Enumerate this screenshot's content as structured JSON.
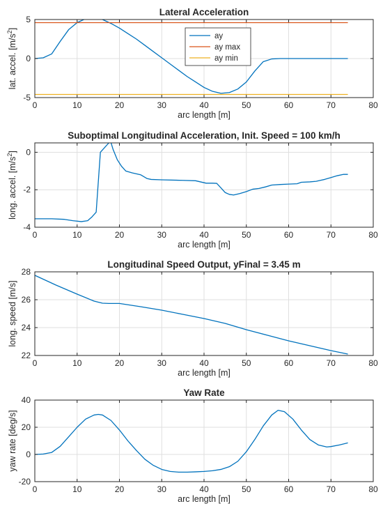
{
  "chart_data": [
    {
      "type": "line",
      "title": "Lateral Acceleration",
      "xlabel": "arc length [m]",
      "ylabel": "lat. accel. [m/s",
      "ylabel_sup": "2",
      "ylabel_end": "]",
      "xlim": [
        0,
        80
      ],
      "ylim": [
        -5,
        5
      ],
      "xticks": [
        "0",
        "10",
        "20",
        "30",
        "40",
        "50",
        "60",
        "70",
        "80"
      ],
      "yticks": [
        "-5",
        "0",
        "5"
      ],
      "grid": true,
      "legend": "top-center",
      "series": [
        {
          "name": "ay",
          "color": "#0072BD",
          "x": [
            0,
            2,
            4,
            6,
            8,
            10,
            12,
            14,
            16,
            18,
            20,
            22,
            24,
            26,
            28,
            30,
            32,
            34,
            36,
            38,
            40,
            42,
            44,
            46,
            48,
            50,
            52,
            54,
            56,
            58,
            60,
            62,
            64,
            66,
            68,
            70,
            72,
            74
          ],
          "y": [
            0,
            0.1,
            0.6,
            2.2,
            3.7,
            4.6,
            5.1,
            5.25,
            5.0,
            4.5,
            3.9,
            3.2,
            2.5,
            1.7,
            0.9,
            0.1,
            -0.7,
            -1.5,
            -2.3,
            -3.0,
            -3.7,
            -4.2,
            -4.45,
            -4.35,
            -3.9,
            -3.0,
            -1.6,
            -0.4,
            -0.05,
            0,
            0,
            0,
            0,
            0,
            0,
            0,
            0,
            0
          ]
        },
        {
          "name": "ay max",
          "color": "#D95319",
          "x": [
            0,
            74
          ],
          "y": [
            4.6,
            4.6
          ]
        },
        {
          "name": "ay min",
          "color": "#EDB120",
          "x": [
            0,
            74
          ],
          "y": [
            -4.6,
            -4.6
          ]
        }
      ]
    },
    {
      "type": "line",
      "title": "Suboptimal Longitudinal Acceleration, Init. Speed = 100 km/h",
      "xlabel": "arc length [m]",
      "ylabel": "long. accel. [m/s",
      "ylabel_sup": "2",
      "ylabel_end": "]",
      "xlim": [
        0,
        80
      ],
      "ylim": [
        -4,
        0.5
      ],
      "xticks": [
        "0",
        "10",
        "20",
        "30",
        "40",
        "50",
        "60",
        "70",
        "80"
      ],
      "yticks": [
        "-4",
        "-2",
        "0"
      ],
      "ytick_values": [
        -4,
        -2,
        0
      ],
      "grid": true,
      "series": [
        {
          "name": "",
          "color": "#0072BD",
          "x": [
            0,
            4,
            7,
            9,
            11,
            12.5,
            13.5,
            14.5,
            15.5,
            16.5,
            17.5,
            18,
            18.5,
            19.5,
            20.5,
            21.5,
            23,
            25,
            26.5,
            27.5,
            30,
            35,
            38,
            40.5,
            42,
            43,
            44,
            45,
            46,
            47,
            48.5,
            50,
            51.5,
            53,
            54.5,
            56,
            58,
            60,
            62,
            63,
            65,
            66.5,
            67.5,
            68.5,
            70,
            71.5,
            73,
            74
          ],
          "y": [
            -3.55,
            -3.55,
            -3.58,
            -3.65,
            -3.7,
            -3.65,
            -3.45,
            -3.2,
            0.0,
            0.25,
            0.5,
            0.52,
            0.15,
            -0.4,
            -0.75,
            -1.0,
            -1.1,
            -1.2,
            -1.4,
            -1.45,
            -1.47,
            -1.5,
            -1.52,
            -1.65,
            -1.65,
            -1.66,
            -1.9,
            -2.15,
            -2.25,
            -2.28,
            -2.2,
            -2.1,
            -1.97,
            -1.93,
            -1.85,
            -1.75,
            -1.72,
            -1.7,
            -1.68,
            -1.6,
            -1.58,
            -1.55,
            -1.5,
            -1.45,
            -1.35,
            -1.25,
            -1.18,
            -1.18
          ]
        }
      ]
    },
    {
      "type": "line",
      "title": "Longitudinal Speed Output, yFinal = 3.45 m",
      "xlabel": "arc length [m]",
      "ylabel": "long. speed [m/s]",
      "xlim": [
        0,
        80
      ],
      "ylim": [
        22,
        28
      ],
      "xticks": [
        "0",
        "10",
        "20",
        "30",
        "40",
        "50",
        "60",
        "70",
        "80"
      ],
      "yticks": [
        "22",
        "24",
        "26",
        "28"
      ],
      "ytick_values": [
        22,
        24,
        26,
        28
      ],
      "grid": true,
      "series": [
        {
          "name": "",
          "color": "#0072BD",
          "x": [
            0,
            5,
            10,
            14,
            16,
            17.5,
            20,
            25,
            30,
            35,
            40,
            45,
            50,
            55,
            60,
            65,
            70,
            74
          ],
          "y": [
            27.75,
            27.05,
            26.4,
            25.9,
            25.75,
            25.73,
            25.73,
            25.5,
            25.25,
            24.95,
            24.65,
            24.3,
            23.85,
            23.45,
            23.05,
            22.7,
            22.35,
            22.1
          ]
        }
      ]
    },
    {
      "type": "line",
      "title": "Yaw Rate",
      "xlabel": "arc length [m]",
      "ylabel": "yaw rate [deg/s]",
      "xlim": [
        0,
        80
      ],
      "ylim": [
        -20,
        40
      ],
      "xticks": [
        "0",
        "10",
        "20",
        "30",
        "40",
        "50",
        "60",
        "70",
        "80"
      ],
      "yticks": [
        "-20",
        "0",
        "20",
        "40"
      ],
      "ytick_values": [
        -20,
        0,
        20,
        40
      ],
      "grid": true,
      "series": [
        {
          "name": "",
          "color": "#0072BD",
          "x": [
            0,
            2,
            4,
            6,
            8,
            10,
            12,
            14,
            15,
            16,
            18,
            20,
            22,
            24,
            26,
            28,
            30,
            32,
            34,
            36,
            38,
            40,
            42,
            44,
            46,
            48,
            50,
            52,
            54,
            56,
            57.5,
            59,
            61,
            63,
            65,
            67,
            69,
            70,
            72,
            74
          ],
          "y": [
            0,
            0.3,
            1.5,
            6,
            13,
            20,
            26,
            29,
            29.5,
            29,
            25,
            18,
            10,
            3,
            -3.5,
            -8,
            -11,
            -12.5,
            -13,
            -13,
            -12.8,
            -12.5,
            -12,
            -11,
            -9,
            -5,
            2,
            11,
            21,
            29,
            32.5,
            31.5,
            26,
            18,
            11,
            7,
            5.5,
            5.8,
            7,
            8.5
          ]
        }
      ]
    }
  ]
}
